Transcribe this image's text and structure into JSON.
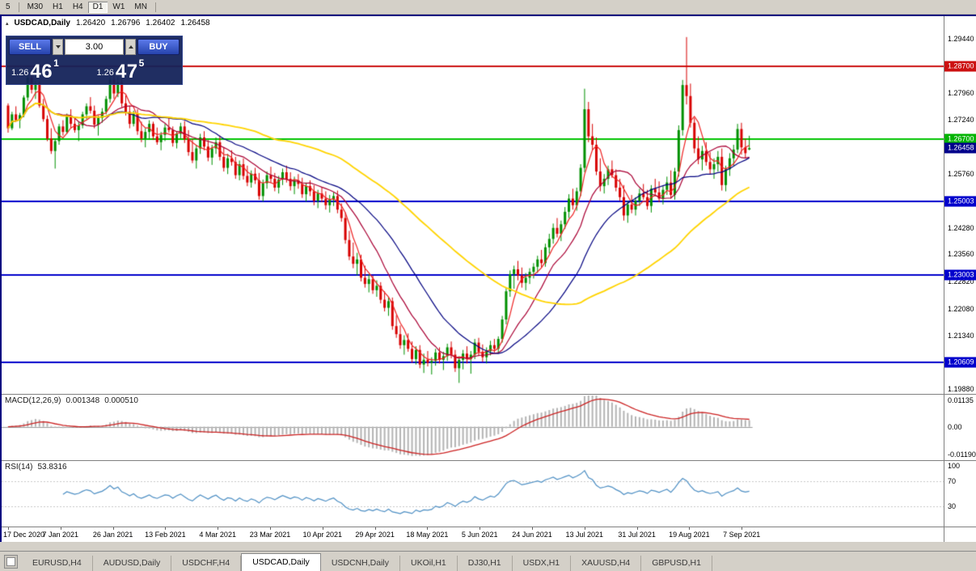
{
  "icons": {
    "trade_panel_toggle": "▴"
  },
  "toolbar": {
    "timeframes": [
      {
        "label": "5",
        "active": false
      },
      {
        "label": "M30",
        "active": false
      },
      {
        "label": "H1",
        "active": false
      },
      {
        "label": "H4",
        "active": false
      },
      {
        "label": "D1",
        "active": true
      },
      {
        "label": "W1",
        "active": false
      },
      {
        "label": "MN",
        "active": false
      }
    ]
  },
  "chart": {
    "title": {
      "symbol": "USDCAD,Daily",
      "open": "1.26420",
      "high": "1.26796",
      "low": "1.26402",
      "close": "1.26458"
    },
    "price_axis": {
      "labels": [
        "1.29440",
        "1.27960",
        "1.27240",
        "1.25760",
        "1.24280",
        "1.23560",
        "1.22820",
        "1.22080",
        "1.21340",
        "1.19880"
      ],
      "badges": [
        {
          "label": "1.28700",
          "value": 1.287,
          "color": "#cc1111",
          "type": "resistance-line"
        },
        {
          "label": "1.26700",
          "value": 1.267,
          "color": "#00b300",
          "type": "support-line-green"
        },
        {
          "label": "1.26458",
          "value": 1.26458,
          "color": "#00008b",
          "type": "current-price"
        },
        {
          "label": "1.25003",
          "value": 1.25003,
          "color": "#0000cc",
          "type": "support-line-blue"
        },
        {
          "label": "1.23003",
          "value": 1.23003,
          "color": "#0000cc",
          "type": "support-line-blue"
        },
        {
          "label": "1.20609",
          "value": 1.20609,
          "color": "#0000cc",
          "type": "support-line-blue"
        }
      ]
    }
  },
  "trade": {
    "sell_label": "SELL",
    "buy_label": "BUY",
    "volume": "3.00",
    "price_prefix": "1.26",
    "sell_big": "46",
    "sell_sup": "1",
    "buy_big": "47",
    "buy_sup": "5"
  },
  "macd": {
    "label": "MACD(12,26,9)",
    "value_main": "0.001348",
    "value_signal": "0.000510",
    "fast": 12,
    "slow": 26,
    "signal": 9,
    "axis_labels": [
      "0.01135",
      "0.00",
      "-0.01190"
    ],
    "histogram_color": "#b4b4b4",
    "signal_color": "#cc2222"
  },
  "rsi": {
    "label": "RSI(14)",
    "value": "53.8316",
    "period": 14,
    "axis_labels": [
      "100",
      "70",
      "30"
    ],
    "levels": [
      70,
      30
    ],
    "line_color": "#4d8fc4"
  },
  "time_axis": {
    "labels": [
      "17 Dec 2020",
      "7 Jan 2021",
      "26 Jan 2021",
      "13 Feb 2021",
      "4 Mar 2021",
      "23 Mar 2021",
      "10 Apr 2021",
      "29 Apr 2021",
      "18 May 2021",
      "5 Jun 2021",
      "24 Jun 2021",
      "13 Jul 2021",
      "31 Jul 2021",
      "19 Aug 2021",
      "7 Sep 2021"
    ]
  },
  "tabs": [
    {
      "label": "EURUSD,H4",
      "active": false
    },
    {
      "label": "AUDUSD,Daily",
      "active": false
    },
    {
      "label": "USDCHF,H4",
      "active": false
    },
    {
      "label": "USDCAD,Daily",
      "active": true
    },
    {
      "label": "USDCNH,Daily",
      "active": false
    },
    {
      "label": "UKOil,H1",
      "active": false
    },
    {
      "label": "DJ30,H1",
      "active": false
    },
    {
      "label": "USDX,H1",
      "active": false
    },
    {
      "label": "XAUUSD,H4",
      "active": false
    },
    {
      "label": "GBPUSD,H1",
      "active": false
    }
  ],
  "chart_data": {
    "type": "candlestick",
    "symbol": "USDCAD",
    "timeframe": "Daily",
    "y_range": [
      1.1975,
      1.3006
    ],
    "up_color": "#009000",
    "down_color": "#d80000",
    "hlines": [
      {
        "value": 1.287,
        "color": "#cc1111"
      },
      {
        "value": 1.267,
        "color": "#00c400"
      },
      {
        "value": 1.25003,
        "color": "#0000cc"
      },
      {
        "value": 1.23003,
        "color": "#0000cc"
      },
      {
        "value": 1.20609,
        "color": "#0000cc"
      }
    ],
    "moving_averages": [
      {
        "period": 5,
        "color": "#ee2222"
      },
      {
        "period": 13,
        "color": "#aa0033"
      },
      {
        "period": 26,
        "color": "#000080"
      },
      {
        "period": 60,
        "color": "#ffd400"
      }
    ],
    "candles": [
      [
        1.2762,
        1.2768,
        1.2688,
        1.27
      ],
      [
        1.27,
        1.2745,
        1.2695,
        1.2738
      ],
      [
        1.2738,
        1.276,
        1.2718,
        1.2722
      ],
      [
        1.2722,
        1.2742,
        1.27,
        1.2736
      ],
      [
        1.2736,
        1.279,
        1.273,
        1.2784
      ],
      [
        1.2784,
        1.2846,
        1.2775,
        1.2838
      ],
      [
        1.2838,
        1.2848,
        1.2795,
        1.2805
      ],
      [
        1.2805,
        1.283,
        1.278,
        1.2822
      ],
      [
        1.2822,
        1.2828,
        1.2756,
        1.2762
      ],
      [
        1.2762,
        1.278,
        1.2718,
        1.2725
      ],
      [
        1.2725,
        1.2735,
        1.2665,
        1.2672
      ],
      [
        1.2672,
        1.27,
        1.263,
        1.2638
      ],
      [
        1.2638,
        1.2672,
        1.259,
        1.2665
      ],
      [
        1.2665,
        1.2712,
        1.2655,
        1.2705
      ],
      [
        1.2705,
        1.2722,
        1.268,
        1.269
      ],
      [
        1.269,
        1.274,
        1.2685,
        1.2732
      ],
      [
        1.2732,
        1.2752,
        1.27,
        1.2712
      ],
      [
        1.2712,
        1.273,
        1.2688,
        1.2695
      ],
      [
        1.2695,
        1.2718,
        1.2665,
        1.2708
      ],
      [
        1.2708,
        1.2745,
        1.27,
        1.2738
      ],
      [
        1.2738,
        1.2768,
        1.2725,
        1.276
      ],
      [
        1.276,
        1.2785,
        1.274,
        1.2748
      ],
      [
        1.2748,
        1.2762,
        1.27,
        1.271
      ],
      [
        1.271,
        1.2735,
        1.268,
        1.2728
      ],
      [
        1.2728,
        1.2755,
        1.2715,
        1.2745
      ],
      [
        1.2745,
        1.2788,
        1.2738,
        1.278
      ],
      [
        1.278,
        1.2842,
        1.277,
        1.2832
      ],
      [
        1.2832,
        1.2845,
        1.278,
        1.2795
      ],
      [
        1.2795,
        1.284,
        1.2785,
        1.2825
      ],
      [
        1.2825,
        1.2835,
        1.2758,
        1.2768
      ],
      [
        1.2768,
        1.279,
        1.2735,
        1.2745
      ],
      [
        1.2745,
        1.2762,
        1.27,
        1.2712
      ],
      [
        1.2712,
        1.2748,
        1.2705,
        1.274
      ],
      [
        1.274,
        1.2752,
        1.2682,
        1.2692
      ],
      [
        1.2692,
        1.2718,
        1.2662,
        1.2672
      ],
      [
        1.2672,
        1.27,
        1.2648,
        1.269
      ],
      [
        1.269,
        1.2722,
        1.267,
        1.2712
      ],
      [
        1.2712,
        1.2718,
        1.2668,
        1.2678
      ],
      [
        1.2678,
        1.2702,
        1.2655,
        1.2662
      ],
      [
        1.2662,
        1.269,
        1.264,
        1.2682
      ],
      [
        1.2682,
        1.2712,
        1.2665,
        1.2702
      ],
      [
        1.2702,
        1.273,
        1.2688,
        1.2695
      ],
      [
        1.2695,
        1.2705,
        1.265,
        1.266
      ],
      [
        1.266,
        1.2692,
        1.2645,
        1.2685
      ],
      [
        1.2685,
        1.2715,
        1.2672,
        1.2705
      ],
      [
        1.2705,
        1.272,
        1.266,
        1.267
      ],
      [
        1.267,
        1.2695,
        1.2625,
        1.2635
      ],
      [
        1.2635,
        1.2672,
        1.2605,
        1.2612
      ],
      [
        1.2612,
        1.2655,
        1.259,
        1.2645
      ],
      [
        1.2645,
        1.2685,
        1.263,
        1.2675
      ],
      [
        1.2675,
        1.2692,
        1.264,
        1.265
      ],
      [
        1.265,
        1.2668,
        1.261,
        1.262
      ],
      [
        1.262,
        1.2655,
        1.26,
        1.2645
      ],
      [
        1.2645,
        1.2675,
        1.263,
        1.2662
      ],
      [
        1.2662,
        1.268,
        1.2612,
        1.2622
      ],
      [
        1.2622,
        1.2648,
        1.2582,
        1.2592
      ],
      [
        1.2592,
        1.263,
        1.2575,
        1.2618
      ],
      [
        1.2618,
        1.264,
        1.2598,
        1.2608
      ],
      [
        1.2608,
        1.2622,
        1.2562,
        1.2572
      ],
      [
        1.2572,
        1.2612,
        1.2558,
        1.2602
      ],
      [
        1.2602,
        1.2618,
        1.256,
        1.257
      ],
      [
        1.257,
        1.2598,
        1.2542,
        1.2552
      ],
      [
        1.2552,
        1.2585,
        1.2538,
        1.2576
      ],
      [
        1.2576,
        1.2592,
        1.2548,
        1.2558
      ],
      [
        1.2558,
        1.2578,
        1.2505,
        1.2515
      ],
      [
        1.2515,
        1.256,
        1.25,
        1.255
      ],
      [
        1.255,
        1.2582,
        1.2535,
        1.2572
      ],
      [
        1.2572,
        1.2595,
        1.2552,
        1.2562
      ],
      [
        1.2562,
        1.2578,
        1.2528,
        1.2538
      ],
      [
        1.2538,
        1.257,
        1.2522,
        1.256
      ],
      [
        1.256,
        1.259,
        1.2545,
        1.258
      ],
      [
        1.258,
        1.2598,
        1.2552,
        1.2562
      ],
      [
        1.2562,
        1.258,
        1.253,
        1.2542
      ],
      [
        1.2542,
        1.2568,
        1.252,
        1.2558
      ],
      [
        1.2558,
        1.2575,
        1.2535,
        1.2548
      ],
      [
        1.2548,
        1.2565,
        1.251,
        1.252
      ],
      [
        1.252,
        1.2552,
        1.25,
        1.2542
      ],
      [
        1.2542,
        1.2558,
        1.2515,
        1.2528
      ],
      [
        1.2528,
        1.2545,
        1.249,
        1.2502
      ],
      [
        1.2502,
        1.2532,
        1.2482,
        1.2522
      ],
      [
        1.2522,
        1.254,
        1.2498,
        1.2508
      ],
      [
        1.2508,
        1.2528,
        1.2478,
        1.249
      ],
      [
        1.249,
        1.2518,
        1.247,
        1.2505
      ],
      [
        1.2505,
        1.2525,
        1.2488,
        1.2515
      ],
      [
        1.2515,
        1.253,
        1.2468,
        1.2478
      ],
      [
        1.2478,
        1.2495,
        1.2445,
        1.2455
      ],
      [
        1.2455,
        1.247,
        1.2385,
        1.2395
      ],
      [
        1.2395,
        1.242,
        1.234,
        1.235
      ],
      [
        1.235,
        1.2388,
        1.2318,
        1.233
      ],
      [
        1.233,
        1.236,
        1.2298,
        1.2342
      ],
      [
        1.2342,
        1.2355,
        1.2282,
        1.2292
      ],
      [
        1.2292,
        1.2325,
        1.2265,
        1.2275
      ],
      [
        1.2275,
        1.2302,
        1.2252,
        1.2288
      ],
      [
        1.2288,
        1.2298,
        1.2248,
        1.2258
      ],
      [
        1.2258,
        1.2285,
        1.224,
        1.227
      ],
      [
        1.227,
        1.228,
        1.2222,
        1.2232
      ],
      [
        1.2232,
        1.2255,
        1.22,
        1.221
      ],
      [
        1.221,
        1.224,
        1.2188,
        1.2228
      ],
      [
        1.2228,
        1.2238,
        1.215,
        1.216
      ],
      [
        1.216,
        1.219,
        1.2128,
        1.2138
      ],
      [
        1.2138,
        1.2162,
        1.2098,
        1.2108
      ],
      [
        1.2108,
        1.2135,
        1.2082,
        1.2122
      ],
      [
        1.2122,
        1.214,
        1.209,
        1.2098
      ],
      [
        1.2098,
        1.2118,
        1.206,
        1.207
      ],
      [
        1.207,
        1.2105,
        1.2055,
        1.2095
      ],
      [
        1.2095,
        1.2108,
        1.2045,
        1.2055
      ],
      [
        1.2055,
        1.2085,
        1.2032,
        1.2068
      ],
      [
        1.2068,
        1.2092,
        1.205,
        1.206
      ],
      [
        1.206,
        1.2075,
        1.2028,
        1.2065
      ],
      [
        1.2065,
        1.2098,
        1.2052,
        1.2088
      ],
      [
        1.2088,
        1.2102,
        1.2058,
        1.2068
      ],
      [
        1.2068,
        1.209,
        1.204,
        1.2078
      ],
      [
        1.2078,
        1.2112,
        1.2065,
        1.2102
      ],
      [
        1.2102,
        1.2118,
        1.2072,
        1.2082
      ],
      [
        1.2082,
        1.2095,
        1.2035,
        1.2045
      ],
      [
        1.2045,
        1.2078,
        1.2005,
        1.2068
      ],
      [
        1.2068,
        1.2095,
        1.2042,
        1.2085
      ],
      [
        1.2085,
        1.2105,
        1.2058,
        1.207
      ],
      [
        1.207,
        1.2092,
        1.203,
        1.2082
      ],
      [
        1.2082,
        1.2125,
        1.207,
        1.2115
      ],
      [
        1.2115,
        1.2128,
        1.2078,
        1.209
      ],
      [
        1.209,
        1.211,
        1.2062,
        1.2075
      ],
      [
        1.2075,
        1.2102,
        1.2058,
        1.2092
      ],
      [
        1.2092,
        1.212,
        1.208,
        1.2108
      ],
      [
        1.2108,
        1.2125,
        1.2088,
        1.2098
      ],
      [
        1.2098,
        1.2132,
        1.2085,
        1.2125
      ],
      [
        1.2125,
        1.2188,
        1.2115,
        1.2178
      ],
      [
        1.2178,
        1.2265,
        1.2165,
        1.2255
      ],
      [
        1.2255,
        1.2312,
        1.224,
        1.2302
      ],
      [
        1.2302,
        1.2325,
        1.2262,
        1.2315
      ],
      [
        1.2315,
        1.2338,
        1.2285,
        1.2298
      ],
      [
        1.2298,
        1.232,
        1.2265,
        1.2278
      ],
      [
        1.2278,
        1.2305,
        1.2258,
        1.2292
      ],
      [
        1.2292,
        1.2318,
        1.2275,
        1.2308
      ],
      [
        1.2308,
        1.2332,
        1.229,
        1.2322
      ],
      [
        1.2322,
        1.2352,
        1.2305,
        1.2342
      ],
      [
        1.2342,
        1.2368,
        1.232,
        1.2332
      ],
      [
        1.2332,
        1.2385,
        1.2322,
        1.2375
      ],
      [
        1.2375,
        1.2412,
        1.2358,
        1.2398
      ],
      [
        1.2398,
        1.244,
        1.2385,
        1.2428
      ],
      [
        1.2428,
        1.2455,
        1.2402,
        1.2412
      ],
      [
        1.2412,
        1.2448,
        1.2392,
        1.2438
      ],
      [
        1.2438,
        1.2485,
        1.2425,
        1.2472
      ],
      [
        1.2472,
        1.252,
        1.2455,
        1.2508
      ],
      [
        1.2508,
        1.2535,
        1.2478,
        1.249
      ],
      [
        1.249,
        1.2538,
        1.2475,
        1.2528
      ],
      [
        1.2528,
        1.2602,
        1.2515,
        1.2592
      ],
      [
        1.2592,
        1.2808,
        1.258,
        1.2752
      ],
      [
        1.2752,
        1.2772,
        1.2662,
        1.2678
      ],
      [
        1.2678,
        1.2712,
        1.264,
        1.2655
      ],
      [
        1.2655,
        1.2675,
        1.2572,
        1.2582
      ],
      [
        1.2582,
        1.2618,
        1.2528,
        1.2542
      ],
      [
        1.2542,
        1.2575,
        1.2522,
        1.2562
      ],
      [
        1.2562,
        1.2598,
        1.2545,
        1.2588
      ],
      [
        1.2588,
        1.2612,
        1.2565,
        1.2572
      ],
      [
        1.2572,
        1.2588,
        1.2528,
        1.2538
      ],
      [
        1.2538,
        1.2562,
        1.2502,
        1.2512
      ],
      [
        1.2512,
        1.2545,
        1.2448,
        1.2462
      ],
      [
        1.2462,
        1.2502,
        1.2442,
        1.2492
      ],
      [
        1.2492,
        1.2518,
        1.2468,
        1.2478
      ],
      [
        1.2478,
        1.2512,
        1.2462,
        1.2502
      ],
      [
        1.2502,
        1.2535,
        1.2488,
        1.2522
      ],
      [
        1.2522,
        1.2548,
        1.2505,
        1.2512
      ],
      [
        1.2512,
        1.2532,
        1.2478,
        1.2488
      ],
      [
        1.2488,
        1.2545,
        1.247,
        1.2535
      ],
      [
        1.2535,
        1.2562,
        1.2515,
        1.2525
      ],
      [
        1.2525,
        1.2555,
        1.2498,
        1.2508
      ],
      [
        1.2508,
        1.2542,
        1.2492,
        1.2532
      ],
      [
        1.2532,
        1.2568,
        1.2518,
        1.2552
      ],
      [
        1.2552,
        1.2585,
        1.2508,
        1.2518
      ],
      [
        1.2518,
        1.2592,
        1.2505,
        1.2582
      ],
      [
        1.2582,
        1.2708,
        1.2568,
        1.2695
      ],
      [
        1.2695,
        1.2832,
        1.268,
        1.2818
      ],
      [
        1.2818,
        1.2949,
        1.2765,
        1.2788
      ],
      [
        1.2788,
        1.2822,
        1.2702,
        1.2715
      ],
      [
        1.2715,
        1.2728,
        1.2632,
        1.2645
      ],
      [
        1.2645,
        1.2678,
        1.2602,
        1.2615
      ],
      [
        1.2615,
        1.2652,
        1.2585,
        1.2638
      ],
      [
        1.2638,
        1.2662,
        1.2598,
        1.2608
      ],
      [
        1.2608,
        1.2635,
        1.2575,
        1.2588
      ],
      [
        1.2588,
        1.2618,
        1.2562,
        1.2602
      ],
      [
        1.2602,
        1.2638,
        1.2582,
        1.2622
      ],
      [
        1.2622,
        1.2645,
        1.253,
        1.2545
      ],
      [
        1.2545,
        1.2598,
        1.2528,
        1.2588
      ],
      [
        1.2588,
        1.2632,
        1.257,
        1.2618
      ],
      [
        1.2618,
        1.2655,
        1.2598,
        1.2642
      ],
      [
        1.2642,
        1.2712,
        1.2632,
        1.2698
      ],
      [
        1.2698,
        1.2715,
        1.2628,
        1.2648
      ],
      [
        1.2648,
        1.2672,
        1.2618,
        1.2632
      ],
      [
        1.2642,
        1.26796,
        1.26402,
        1.26458
      ]
    ]
  }
}
